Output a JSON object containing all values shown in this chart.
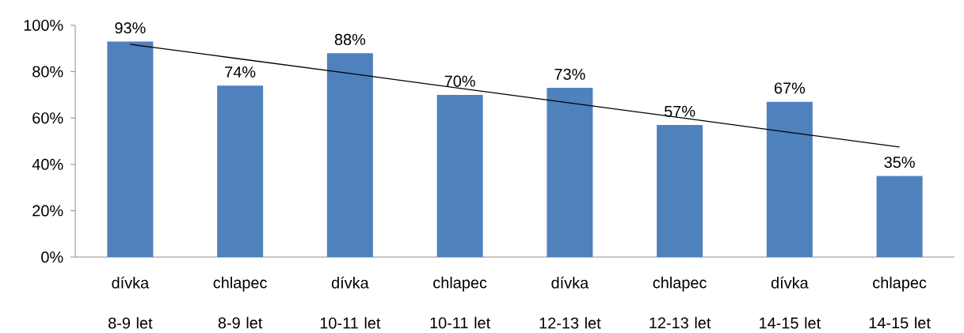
{
  "chart_data": {
    "type": "bar",
    "categories": [
      "dívka 8-9 let",
      "chlapec 8-9 let",
      "dívka 10-11 let",
      "chlapec 10-11 let",
      "dívka 12-13 let",
      "chlapec 12-13 let",
      "dívka 14-15 let",
      "chlapec 14-15 let"
    ],
    "series": [
      {
        "color": "#4f81bd",
        "values": [
          93,
          74,
          88,
          70,
          73,
          57,
          67,
          35
        ],
        "value_labels": [
          "93%",
          "74%",
          "88%",
          "70%",
          "73%",
          "57%",
          "67%",
          "35%"
        ]
      },
      {
        "type": "line",
        "color": "#000000",
        "values": [
          91.8,
          85.5,
          79.2,
          72.8,
          66.5,
          60.2,
          53.8,
          47.5
        ]
      }
    ],
    "ylim": [
      0,
      100
    ],
    "yticks": [
      {
        "value": 0,
        "label": "0%"
      },
      {
        "value": 20,
        "label": "20%"
      },
      {
        "value": 40,
        "label": "40%"
      },
      {
        "value": 60,
        "label": "60%"
      },
      {
        "value": 80,
        "label": "80%"
      },
      {
        "value": 100,
        "label": "100%"
      }
    ]
  }
}
